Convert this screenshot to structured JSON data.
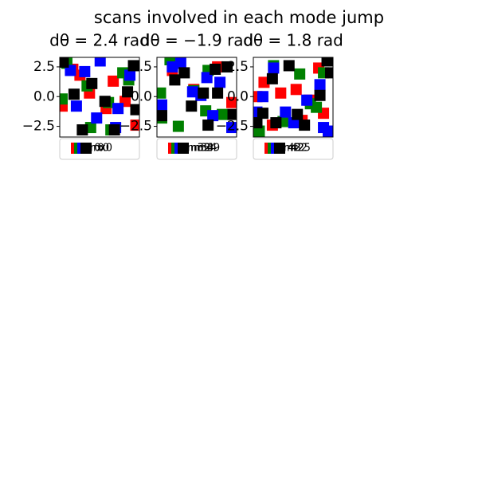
{
  "title": "scans involved in each mode jump",
  "chart_data": [
    {
      "type": "scatter",
      "title": "dθ = 2.4 rad",
      "xlim": [
        -3.3,
        3.4
      ],
      "ylim": [
        -3.4,
        3.3
      ],
      "yticks": [
        {
          "value": 2.5,
          "label": "2.5"
        },
        {
          "value": 0,
          "label": "0.0"
        },
        {
          "value": -2.5,
          "label": "−2.5"
        }
      ],
      "series": [
        {
          "name": "r0",
          "color": "#ff0000",
          "x": [
            -3.1,
            -2.2,
            -0.8,
            0.6,
            2.2,
            -1.6,
            1.2,
            3.1
          ],
          "values": [
            -0.8,
            2.3,
            0.3,
            -1.0,
            -0.4,
            1.8,
            1.3,
            -2.4
          ]
        },
        {
          "name": "r0",
          "color": "#008000",
          "x": [
            -2.7,
            -1.0,
            2.0,
            -3.1,
            0.8,
            -0.7,
            2.5,
            1.0
          ],
          "values": [
            2.8,
            0.9,
            2.0,
            -0.2,
            -0.5,
            -2.6,
            1.4,
            -2.8
          ]
        },
        {
          "name": "x0",
          "color": "#0000ff",
          "x": [
            -2.4,
            -1.2,
            0.1,
            1.6,
            -1.9,
            2.6,
            -0.2,
            1.4
          ],
          "values": [
            2.2,
            2.1,
            3.0,
            -1.0,
            -0.8,
            1.8,
            -1.8,
            -2.6
          ]
        },
        {
          "name": "x0",
          "color": "#000000",
          "x": [
            -3.0,
            -0.6,
            0.5,
            -2.1,
            2.4,
            -1.4,
            1.3,
            3.1,
            2.9
          ],
          "values": [
            2.9,
            1.1,
            -0.4,
            0.2,
            0.4,
            -2.8,
            -2.8,
            -1.1,
            2.6
          ]
        }
      ]
    },
    {
      "type": "scatter",
      "title": "dθ = −1.9 rad",
      "xlim": [
        -3.3,
        3.4
      ],
      "ylim": [
        -3.4,
        3.3
      ],
      "yticks": [
        {
          "value": 2.5,
          "label": "2.5"
        },
        {
          "value": 0,
          "label": "0.0"
        },
        {
          "value": -2.5,
          "label": "−2.5"
        }
      ],
      "series": [
        {
          "name": "m32",
          "color": "#ff0000",
          "x": [
            -2.0,
            1.8,
            3.0,
            -0.2
          ],
          "values": [
            2.2,
            2.5,
            -0.5,
            0.6
          ]
        },
        {
          "name": "m33",
          "color": "#008000",
          "x": [
            -3.0,
            -2.2,
            -0.2,
            1.0,
            -1.5,
            2.2,
            0.8,
            -2.9
          ],
          "values": [
            0.3,
            3.1,
            0.5,
            2.2,
            -2.5,
            -1.5,
            -1.2,
            -1.8
          ]
        },
        {
          "name": "m34",
          "color": "#0000ff",
          "x": [
            -2.0,
            -1.3,
            0.9,
            2.0,
            -2.9,
            0.4,
            1.4,
            3.0,
            -0.3
          ],
          "values": [
            2.5,
            2.8,
            1.6,
            1.2,
            -0.7,
            0.1,
            -1.6,
            -2.6,
            0.4
          ]
        },
        {
          "name": "m49",
          "color": "#000000",
          "x": [
            -1.8,
            -1.0,
            1.6,
            2.6,
            -0.4,
            0.6,
            1.8,
            -2.9,
            3.1,
            1.0
          ],
          "values": [
            1.4,
            2.0,
            2.3,
            2.5,
            -0.8,
            0.3,
            0.3,
            -1.6,
            -1.5,
            -2.4
          ]
        }
      ]
    },
    {
      "type": "scatter",
      "title": "dθ = 1.8 rad",
      "xlim": [
        -3.3,
        3.4
      ],
      "ylim": [
        -3.4,
        3.3
      ],
      "yticks": [
        {
          "value": 2.5,
          "label": "2.5"
        },
        {
          "value": 0,
          "label": "0.0"
        },
        {
          "value": -2.5,
          "label": "−2.5"
        }
      ],
      "series": [
        {
          "name": "r43",
          "color": "#ff0000",
          "x": [
            -2.4,
            -1.0,
            0.3,
            2.2,
            1.4,
            -3.0,
            -1.7,
            0.8,
            2.6
          ],
          "values": [
            1.2,
            0.3,
            0.6,
            2.4,
            -0.3,
            0.0,
            -2.4,
            -2.0,
            -1.4
          ]
        },
        {
          "name": "r42",
          "color": "#008000",
          "x": [
            -1.6,
            0.6,
            2.6,
            -2.8,
            1.5,
            -0.8,
            2.0
          ],
          "values": [
            2.6,
            1.9,
            2.0,
            -2.9,
            -0.6,
            -2.1,
            -0.9
          ]
        },
        {
          "name": "r22",
          "color": "#0000ff",
          "x": [
            -1.6,
            -2.5,
            -0.6,
            1.2,
            2.3,
            -3.0,
            0.1,
            2.6,
            3.0
          ],
          "values": [
            2.4,
            0.0,
            -1.3,
            -0.3,
            1.0,
            -1.3,
            -2.2,
            -2.6,
            -2.9
          ]
        },
        {
          "name": "r25",
          "color": "#000000",
          "x": [
            -0.3,
            -1.7,
            -2.5,
            0.4,
            2.3,
            -1.4,
            1.0,
            2.9,
            -3.0,
            3.2
          ],
          "values": [
            2.6,
            1.5,
            -1.4,
            -1.5,
            0.1,
            -2.2,
            -2.4,
            3.0,
            -2.2,
            2.0
          ]
        }
      ]
    }
  ]
}
